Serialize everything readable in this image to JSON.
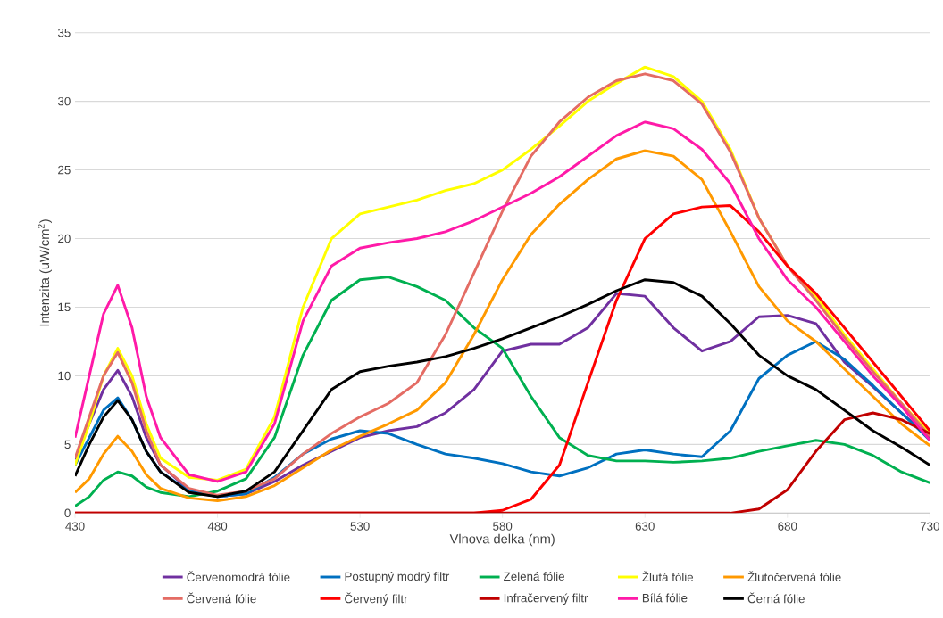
{
  "chart_data": {
    "type": "line",
    "xlabel": "Vlnova delka (nm)",
    "ylabel": "Intenzita (uW/cm$^{2}$)",
    "x": [
      430,
      435,
      440,
      445,
      450,
      455,
      460,
      470,
      480,
      490,
      500,
      510,
      520,
      530,
      540,
      550,
      560,
      570,
      580,
      590,
      600,
      610,
      620,
      630,
      640,
      650,
      660,
      670,
      680,
      690,
      700,
      710,
      720,
      730
    ],
    "xlim": [
      430,
      730
    ],
    "xticks": [
      430,
      480,
      530,
      580,
      630,
      680,
      730
    ],
    "ylim": [
      0,
      35
    ],
    "yticks": [
      0,
      5,
      10,
      15,
      20,
      25,
      30,
      35
    ],
    "grid": "y",
    "legend": "bottom",
    "marker": "none",
    "line_style": "solid",
    "series": [
      {
        "name": "Červenomodrá fólie",
        "color": "#7030a0",
        "values": [
          3.9,
          6.5,
          9,
          10.4,
          8.5,
          5.5,
          3.5,
          1.7,
          1.2,
          1.4,
          2.3,
          3.5,
          4.5,
          5.5,
          6.0,
          6.3,
          7.3,
          9.0,
          11.8,
          12.3,
          12.3,
          13.5,
          16.0,
          15.8,
          13.5,
          11.8,
          12.5,
          14.3,
          14.4,
          13.8,
          11.0,
          9.2,
          7.3,
          5.5
        ]
      },
      {
        "name": "Postupný modrý filtr",
        "color": "#0070c0",
        "values": [
          3.5,
          5.5,
          7.5,
          8.4,
          6.8,
          4.5,
          3.0,
          1.6,
          1.2,
          1.4,
          2.6,
          4.3,
          5.4,
          6.0,
          5.8,
          5.0,
          4.3,
          4.0,
          3.6,
          3.0,
          2.7,
          3.3,
          4.3,
          4.6,
          4.3,
          4.1,
          6.0,
          9.8,
          11.5,
          12.5,
          11.2,
          9.3,
          7.3,
          5.3
        ]
      },
      {
        "name": "Zelená fólie",
        "color": "#00b050",
        "values": [
          0.5,
          1.2,
          2.4,
          3.0,
          2.7,
          1.9,
          1.5,
          1.2,
          1.6,
          2.5,
          5.5,
          11.5,
          15.5,
          17.0,
          17.2,
          16.5,
          15.5,
          13.5,
          12.0,
          8.5,
          5.5,
          4.2,
          3.8,
          3.8,
          3.7,
          3.8,
          4.0,
          4.5,
          4.9,
          5.3,
          5.0,
          4.2,
          3.0,
          2.2
        ]
      },
      {
        "name": "Žlutá fólie",
        "color": "#ffff00",
        "values": [
          3.5,
          6.5,
          10,
          12.0,
          10.0,
          6.5,
          4.0,
          2.6,
          2.4,
          3.2,
          7.0,
          15.0,
          20.0,
          21.8,
          22.3,
          22.8,
          23.5,
          24.0,
          25.0,
          26.5,
          28.2,
          30.0,
          31.3,
          32.5,
          31.8,
          30.0,
          26.5,
          21.5,
          18.0,
          15.8,
          13.0,
          10.5,
          8.0,
          5.8
        ]
      },
      {
        "name": "Žlutočervená fólie",
        "color": "#ff9900",
        "values": [
          1.5,
          2.5,
          4.3,
          5.6,
          4.5,
          2.8,
          1.8,
          1.1,
          0.9,
          1.2,
          2.0,
          3.3,
          4.6,
          5.6,
          6.5,
          7.5,
          9.5,
          13.0,
          17.0,
          20.3,
          22.5,
          24.3,
          25.8,
          26.4,
          26.0,
          24.3,
          20.5,
          16.5,
          14.0,
          12.5,
          10.5,
          8.5,
          6.5,
          4.9
        ]
      },
      {
        "name": "Červená fólie",
        "color": "#e46c64",
        "values": [
          4.0,
          7.0,
          10.0,
          11.7,
          9.5,
          6.0,
          3.5,
          1.8,
          1.3,
          1.6,
          2.5,
          4.3,
          5.8,
          7.0,
          8.0,
          9.5,
          13.0,
          17.5,
          22.0,
          26.0,
          28.5,
          30.3,
          31.5,
          32.0,
          31.5,
          29.8,
          26.3,
          21.5,
          18.0,
          15.5,
          12.8,
          10.3,
          8.0,
          5.6
        ]
      },
      {
        "name": "Červený filtr",
        "color": "#ff0000",
        "values": [
          0,
          0,
          0,
          0,
          0,
          0,
          0,
          0,
          0,
          0,
          0,
          0,
          0,
          0,
          0,
          0,
          0,
          0,
          0.2,
          1.0,
          3.5,
          9.5,
          15.5,
          20.0,
          21.8,
          22.3,
          22.4,
          20.5,
          18.0,
          16.0,
          13.5,
          11.0,
          8.5,
          6.0
        ]
      },
      {
        "name": "Infračervený filtr",
        "color": "#c00000",
        "values": [
          0,
          0,
          0,
          0,
          0,
          0,
          0,
          0,
          0,
          0,
          0,
          0,
          0,
          0,
          0,
          0,
          0,
          0,
          0,
          0,
          0,
          0,
          0,
          0,
          0,
          0,
          0,
          0.3,
          1.7,
          4.5,
          6.8,
          7.3,
          6.8,
          5.8
        ]
      },
      {
        "name": "Bílá fólie",
        "color": "#ff1aa8",
        "values": [
          5.5,
          10,
          14.5,
          16.6,
          13.5,
          8.5,
          5.5,
          2.8,
          2.3,
          3.0,
          6.5,
          14.0,
          18.0,
          19.3,
          19.7,
          20.0,
          20.5,
          21.3,
          22.3,
          23.3,
          24.5,
          26.0,
          27.5,
          28.5,
          28.0,
          26.5,
          24.0,
          20.0,
          17.0,
          15.0,
          12.5,
          10.0,
          7.8,
          5.3
        ]
      },
      {
        "name": "Černá fólie",
        "color": "#000000",
        "values": [
          2.7,
          5.0,
          7.0,
          8.2,
          6.8,
          4.5,
          3.0,
          1.5,
          1.2,
          1.6,
          3.0,
          6.0,
          9.0,
          10.3,
          10.7,
          11.0,
          11.4,
          12.0,
          12.7,
          13.5,
          14.3,
          15.2,
          16.2,
          17.0,
          16.8,
          15.8,
          13.8,
          11.5,
          10.0,
          9.0,
          7.5,
          6.0,
          4.8,
          3.5
        ]
      }
    ]
  }
}
